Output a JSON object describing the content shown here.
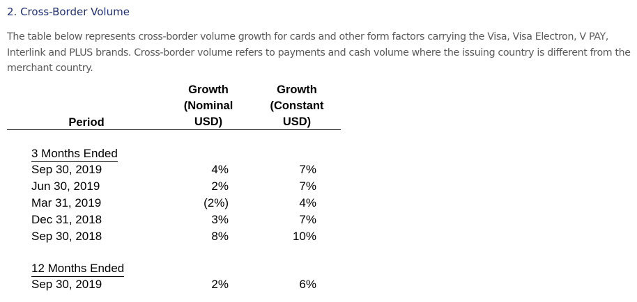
{
  "section": {
    "heading": "2. Cross-Border Volume",
    "intro": "The table below represents cross-border volume growth for cards and other form factors carrying the Visa, Visa Electron, V PAY, Interlink and PLUS brands. Cross-border volume refers to payments and cash volume where the issuing country is different from the merchant country."
  },
  "table": {
    "headers": {
      "period": "Period",
      "nominal": [
        "Growth",
        "(Nominal",
        "USD)"
      ],
      "constant": [
        "Growth",
        "(Constant",
        "USD)"
      ]
    },
    "groups": [
      {
        "label": "3 Months Ended",
        "rows": [
          {
            "period": "Sep 30, 2019",
            "nominal": "4%",
            "constant": "7%"
          },
          {
            "period": "Jun 30, 2019",
            "nominal": "2%",
            "constant": "7%"
          },
          {
            "period": "Mar 31, 2019",
            "nominal": "(2%)",
            "constant": "4%"
          },
          {
            "period": "Dec 31, 2018",
            "nominal": "3%",
            "constant": "7%"
          },
          {
            "period": "Sep 30, 2018",
            "nominal": "8%",
            "constant": "10%"
          }
        ]
      },
      {
        "label": "12 Months Ended",
        "rows": [
          {
            "period": "Sep 30, 2019",
            "nominal": "2%",
            "constant": "6%"
          }
        ]
      }
    ]
  },
  "colors": {
    "heading": "#1f2e78",
    "body_text": "#5a5a5a",
    "table_text": "#000000"
  }
}
